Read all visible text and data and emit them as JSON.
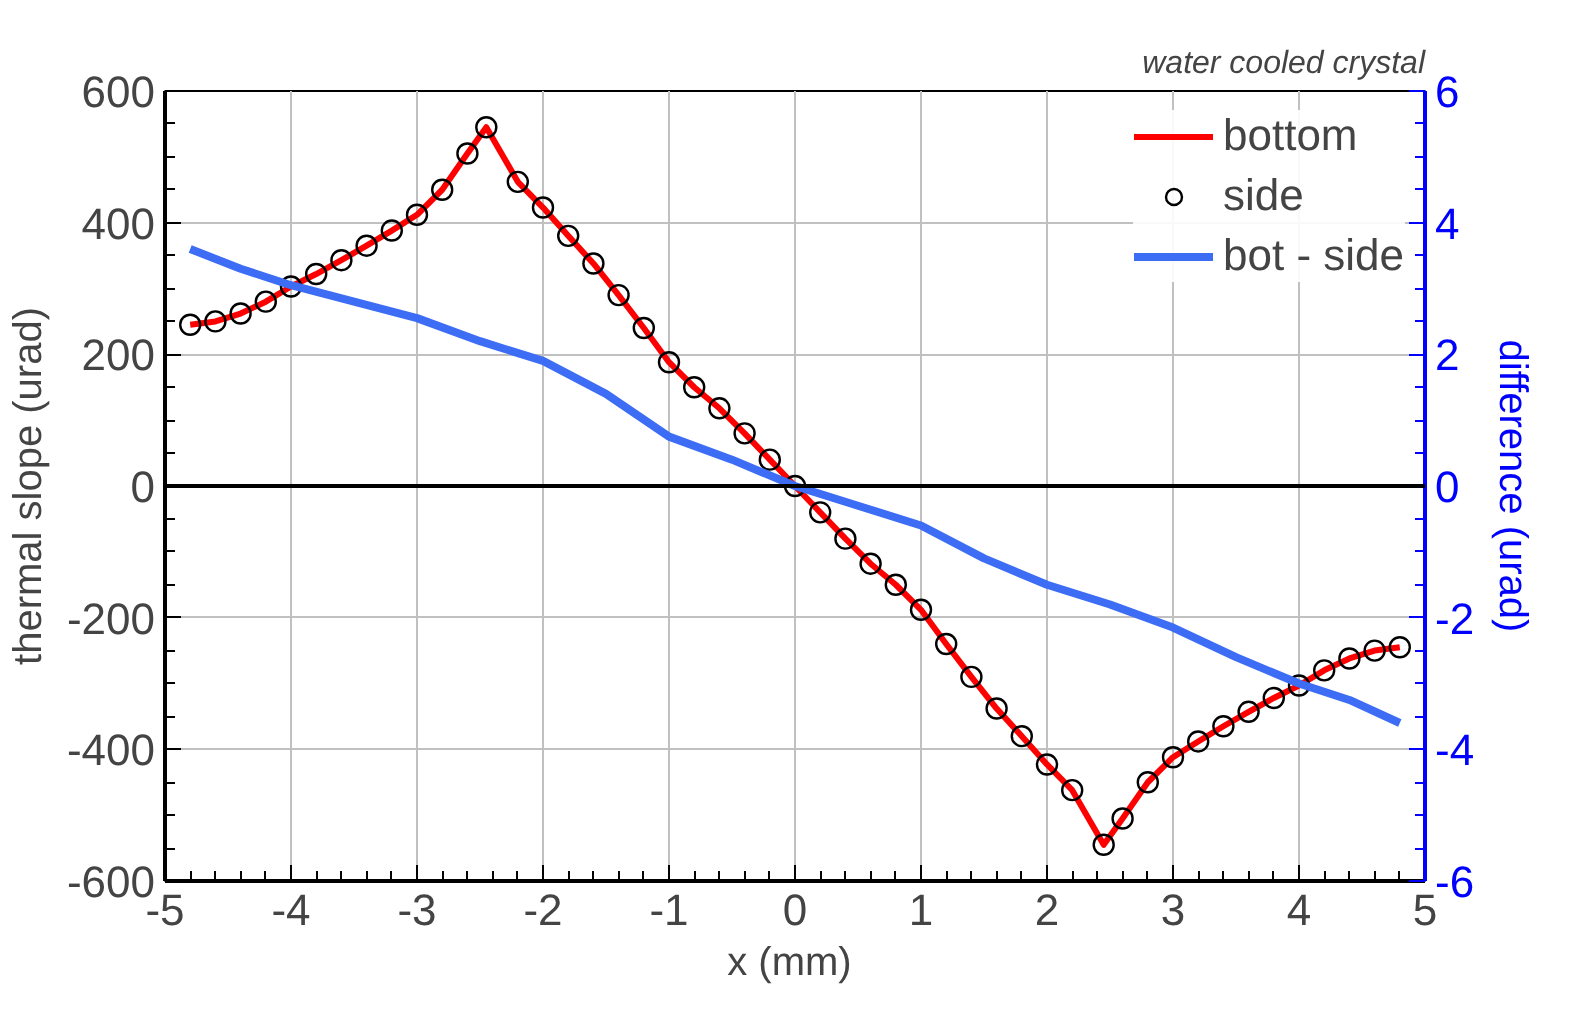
{
  "chart_data": {
    "type": "line",
    "annotations": [
      "water cooled crystal"
    ],
    "xlabel": "x  (mm)",
    "ylabel": "thermal slope (urad)",
    "y2label": "difference (urad)",
    "xlim": [
      -5,
      5
    ],
    "xticks": [
      -5,
      -4,
      -3,
      -2,
      -1,
      0,
      1,
      2,
      3,
      4,
      5
    ],
    "ylim": [
      -600,
      600
    ],
    "yticks": [
      -600,
      -400,
      -200,
      0,
      200,
      400,
      600
    ],
    "y2lim": [
      -6,
      6
    ],
    "y2ticks": [
      -6,
      -4,
      -2,
      0,
      2,
      4,
      6
    ],
    "grid": true,
    "legend": "top right",
    "x": [
      -4.8,
      -4.6,
      -4.4,
      -4.2,
      -4.0,
      -3.8,
      -3.6,
      -3.4,
      -3.2,
      -3.0,
      -2.8,
      -2.6,
      -2.45,
      -2.2,
      -2.0,
      -1.8,
      -1.6,
      -1.4,
      -1.2,
      -1.0,
      -0.8,
      -0.6,
      -0.4,
      -0.2,
      0,
      0.2,
      0.4,
      0.6,
      0.8,
      1.0,
      1.2,
      1.4,
      1.6,
      1.8,
      2.0,
      2.2,
      2.45,
      2.6,
      2.8,
      3.0,
      3.2,
      3.4,
      3.6,
      3.8,
      4.0,
      4.2,
      4.4,
      4.6,
      4.8
    ],
    "series": [
      {
        "name": "bottom",
        "color": "#ff0000",
        "marker": "none",
        "values": [
          245,
          250,
          262,
          280,
          303,
          322,
          343,
          365,
          388,
          412,
          450,
          505,
          545,
          462,
          423,
          380,
          338,
          290,
          240,
          188,
          150,
          118,
          80,
          40,
          0,
          -40,
          -80,
          -118,
          -150,
          -188,
          -240,
          -290,
          -338,
          -380,
          -423,
          -462,
          -545,
          -505,
          -450,
          -412,
          -388,
          -365,
          -343,
          -322,
          -303,
          -280,
          -262,
          -250,
          -245
        ]
      },
      {
        "name": "side",
        "type": "scatter",
        "color": "#000000",
        "marker": "circle",
        "values": [
          245,
          250,
          262,
          280,
          303,
          322,
          343,
          365,
          388,
          412,
          450,
          505,
          545,
          462,
          423,
          380,
          338,
          290,
          240,
          188,
          150,
          118,
          80,
          40,
          0,
          -40,
          -80,
          -118,
          -150,
          -188,
          -240,
          -290,
          -338,
          -380,
          -423,
          -462,
          -545,
          -505,
          -450,
          -412,
          -388,
          -365,
          -343,
          -322,
          -303,
          -280,
          -262,
          -250,
          -245
        ]
      },
      {
        "name": "bot - side",
        "type": "line",
        "axis": "y2",
        "color": "#3d6cf5",
        "marker": "none",
        "x": [
          -4.8,
          -4.4,
          -4,
          -3.5,
          -3,
          -2.5,
          -2,
          -1.5,
          -1,
          -0.5,
          0,
          0.5,
          1,
          1.5,
          2,
          2.5,
          3,
          3.5,
          4,
          4.4,
          4.8
        ],
        "values": [
          3.6,
          3.3,
          3.05,
          2.8,
          2.55,
          2.2,
          1.9,
          1.4,
          0.75,
          0.4,
          0,
          -0.3,
          -0.6,
          -1.1,
          -1.5,
          -1.8,
          -2.15,
          -2.6,
          -3.0,
          -3.25,
          -3.6
        ]
      }
    ]
  }
}
